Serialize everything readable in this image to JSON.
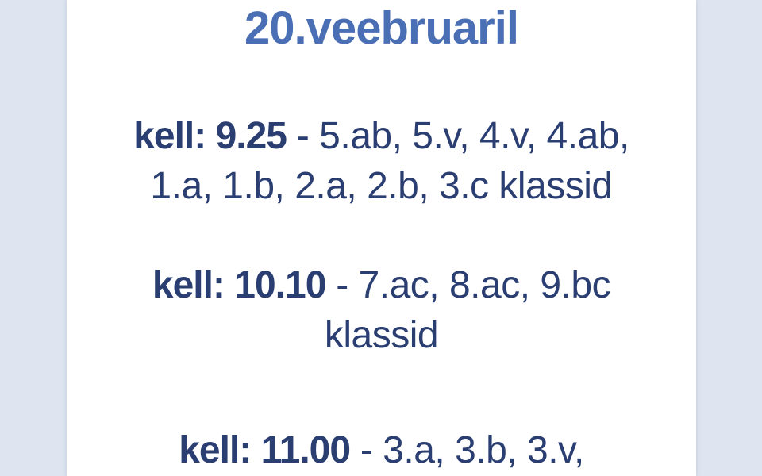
{
  "page": {
    "title": "20.veebruaril"
  },
  "schedule": {
    "sections": [
      {
        "lines": [
          {
            "bold": "kell: 9.25",
            "rest": " - 5.ab, 5.v, 4.v, 4.ab,"
          },
          {
            "bold": "",
            "rest": "1.a, 1.b, 2.a, 2.b, 3.c klassid"
          }
        ]
      },
      {
        "lines": [
          {
            "bold": "kell: 10.10",
            "rest": " - 7.ac, 8.ac, 9.bc"
          },
          {
            "bold": "",
            "rest": "klassid"
          }
        ]
      },
      {
        "lines": [
          {
            "bold": "kell: 11.00",
            "rest": " - 3.a, 3.b, 3.v,"
          }
        ]
      }
    ]
  },
  "colors": {
    "background": "#dee5f0",
    "card": "#ffffff",
    "title_blue": "#4a6fb5",
    "body_navy": "#2a3e72"
  }
}
